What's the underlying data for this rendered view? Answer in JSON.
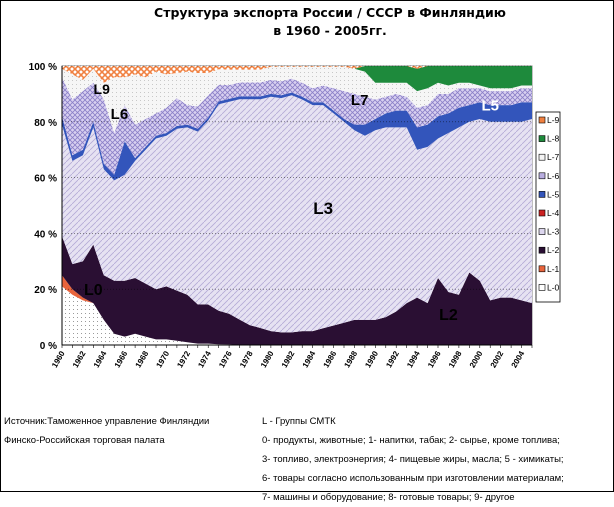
{
  "chart_data": {
    "type": "area",
    "stacked": true,
    "normalized_percent": true,
    "title": "Структура экспорта  России / СССР в Финляндию\nв 1960 - 2005гг.",
    "x": [
      1960,
      1961,
      1962,
      1963,
      1964,
      1965,
      1966,
      1967,
      1968,
      1969,
      1970,
      1971,
      1972,
      1973,
      1974,
      1975,
      1976,
      1977,
      1978,
      1979,
      1980,
      1981,
      1982,
      1983,
      1984,
      1985,
      1986,
      1987,
      1988,
      1989,
      1990,
      1991,
      1992,
      1993,
      1994,
      1995,
      1996,
      1997,
      1998,
      1999,
      2000,
      2001,
      2002,
      2003,
      2004,
      2005
    ],
    "x_tick_labels": [
      "1960",
      "1962",
      "1964",
      "1966",
      "1968",
      "1970",
      "1972",
      "1974",
      "1976",
      "1978",
      "1980",
      "1982",
      "1984",
      "1986",
      "1988",
      "1990",
      "1992",
      "1994",
      "1996",
      "1998",
      "2000",
      "2002",
      "2004"
    ],
    "y_tick_labels": [
      "0 %",
      "20 %",
      "40 %",
      "60 %",
      "80 %",
      "100 %"
    ],
    "ylim": [
      0,
      100
    ],
    "grid": true,
    "legend_position": "right",
    "series": [
      {
        "name": "L-0",
        "color": "#ffffff",
        "values": [
          21,
          18,
          16,
          15,
          9,
          4,
          3,
          4,
          3,
          2,
          2,
          1.5,
          1,
          0.5,
          0.5,
          0.3,
          0.2,
          0.1,
          0.1,
          0.1,
          0,
          0,
          0,
          0,
          0,
          0,
          0,
          0,
          0,
          0,
          0,
          0,
          0,
          0,
          0,
          0,
          0,
          0,
          0,
          0,
          0,
          0,
          0,
          0,
          0,
          0
        ]
      },
      {
        "name": "L-1",
        "color": "#e8643c",
        "values": [
          4,
          2,
          1,
          0,
          0,
          0,
          0,
          0,
          0,
          0,
          0,
          0,
          0,
          0,
          0,
          0,
          0,
          0,
          0,
          0,
          0,
          0,
          0,
          0,
          0,
          0,
          0,
          0,
          0,
          0,
          0,
          0,
          0,
          0,
          0,
          0,
          0,
          0,
          0,
          0,
          0,
          0,
          0,
          0,
          0,
          0
        ]
      },
      {
        "name": "L-2",
        "color": "#2a0f33",
        "values": [
          14,
          9,
          13,
          21,
          16,
          19,
          20,
          20,
          19,
          18,
          19,
          18,
          17,
          14,
          14,
          12,
          11,
          9,
          7,
          6,
          5,
          4.5,
          4.5,
          5,
          5,
          6,
          7,
          8,
          9,
          9,
          9,
          10,
          12,
          15,
          17,
          15,
          24,
          19,
          18,
          26,
          23,
          16,
          17,
          17,
          16,
          15
        ]
      },
      {
        "name": "L-3",
        "color": "#dcd6ee",
        "values": [
          40,
          37,
          38,
          42,
          38,
          36,
          38,
          42,
          48,
          54,
          54,
          58,
          60,
          62,
          66,
          74,
          76,
          79,
          81,
          82,
          84,
          84,
          85,
          83,
          81,
          80,
          76,
          72,
          68,
          66,
          68,
          68,
          66,
          63,
          53,
          56,
          50,
          57,
          60,
          54,
          58,
          64,
          63,
          63,
          64,
          66
        ]
      },
      {
        "name": "L-4",
        "color": "#cc2222",
        "values": [
          0,
          0,
          0,
          0,
          0,
          0,
          0,
          0,
          0,
          0,
          0,
          0,
          0,
          0,
          0,
          0,
          0,
          0,
          0,
          0,
          0,
          0,
          0,
          0,
          0,
          0,
          0,
          0,
          0,
          0,
          0,
          0,
          0,
          0,
          0,
          0,
          0,
          0,
          0,
          0,
          0,
          0,
          0,
          0,
          0,
          0
        ]
      },
      {
        "name": "L-5",
        "color": "#3355bb",
        "values": [
          3,
          2,
          2,
          2,
          2,
          2,
          12,
          1,
          1,
          1,
          1,
          1,
          1,
          1,
          1,
          1,
          1,
          1,
          1,
          1,
          1,
          1,
          1,
          1,
          1,
          1,
          1,
          1,
          2,
          4,
          4,
          5,
          6,
          6,
          8,
          8,
          8,
          7,
          7,
          6,
          6,
          6,
          6,
          6,
          7,
          6
        ]
      },
      {
        "name": "L-6",
        "color": "#b9aee0",
        "values": [
          14,
          20,
          21,
          14,
          23,
          15,
          13,
          12,
          10,
          8,
          9,
          10,
          7,
          8,
          8,
          6,
          5,
          5,
          5,
          5,
          5,
          5,
          5,
          5,
          5,
          6,
          8,
          10,
          11,
          10,
          7,
          6,
          6,
          5,
          7,
          7,
          8,
          7,
          7,
          6,
          5,
          5,
          5,
          5,
          5,
          5
        ]
      },
      {
        "name": "L-7",
        "color": "#f4f4f4",
        "values": [
          3,
          9,
          4,
          5,
          6,
          20,
          10,
          18,
          15,
          15,
          12,
          9,
          12,
          12,
          8,
          5.5,
          5.5,
          4.6,
          4.6,
          4.6,
          4.7,
          5.2,
          4.2,
          5.7,
          7.7,
          6.7,
          7.7,
          8.7,
          9,
          9,
          6,
          5,
          4,
          5,
          6,
          6,
          4,
          3,
          2,
          2,
          1,
          1,
          1,
          1,
          1,
          1
        ]
      },
      {
        "name": "L-8",
        "color": "#1e8a3c",
        "values": [
          0,
          0,
          0,
          0,
          0,
          0,
          0,
          0,
          0,
          0,
          0,
          0,
          0,
          0,
          0,
          0,
          0,
          0,
          0,
          0,
          0,
          0,
          0,
          0,
          0,
          0,
          0,
          0,
          0,
          2,
          6,
          6,
          6,
          6,
          8,
          8,
          6,
          7,
          6,
          6,
          7,
          8,
          8,
          8,
          7,
          7
        ]
      },
      {
        "name": "L-9",
        "color": "#f08040",
        "values": [
          1,
          3,
          5,
          1,
          6,
          4,
          4,
          3,
          4,
          2,
          3,
          2.5,
          2,
          2.5,
          2.5,
          1.2,
          1.3,
          1.3,
          1.3,
          1.3,
          0.3,
          0.3,
          0.3,
          0.3,
          1.3,
          1.3,
          1.3,
          0.3,
          1,
          0,
          0,
          0,
          0,
          0,
          1,
          0,
          0,
          0,
          0,
          0,
          0,
          0,
          0,
          0,
          0,
          0
        ]
      }
    ],
    "annotations": [
      "L0",
      "L2",
      "L3",
      "L5",
      "L6",
      "L7",
      "L9"
    ]
  },
  "legend_title": "L - Группы СМТК",
  "source_lines": [
    "Источник:Таможенное управление Финляндии",
    "Финско-Российская торговая палата"
  ],
  "legend_lines": [
    "0- продукты, животные; 1- напитки, табак; 2- сырье, кроме топлива;",
    "3- топливо, электроэнергия; 4- пищевые жиры, масла; 5 - химикаты;",
    "6- товары согласно использованным при изготовлении материалам;",
    "7- машины и оборудование; 8- готовые товары; 9- другое"
  ]
}
